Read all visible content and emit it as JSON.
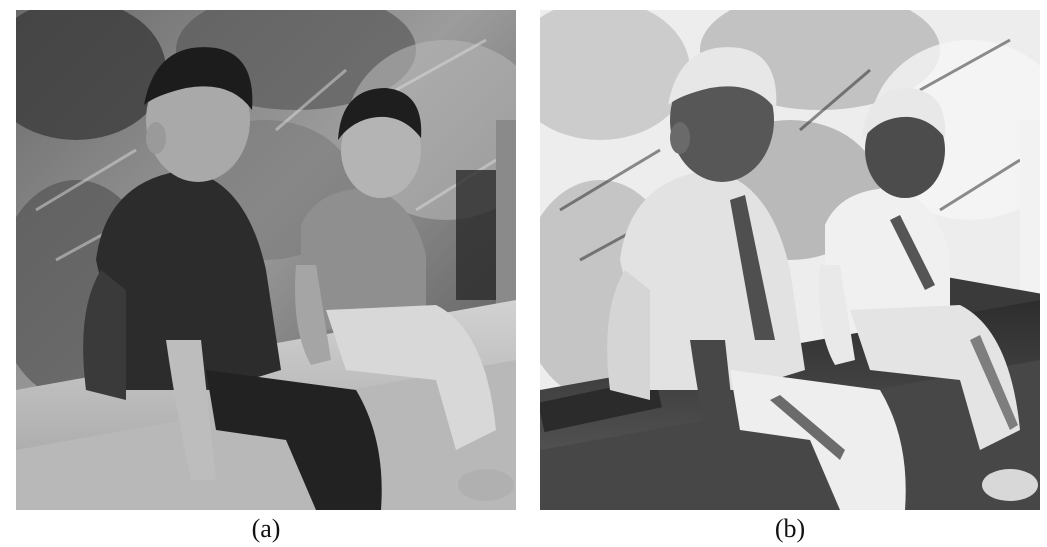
{
  "panels": [
    {
      "caption": "(a)",
      "variant": "original-grayscale"
    },
    {
      "caption": "(b)",
      "variant": "inverted-negative"
    }
  ],
  "colors": {
    "background": "#ffffff",
    "caption_text": "#111111"
  }
}
